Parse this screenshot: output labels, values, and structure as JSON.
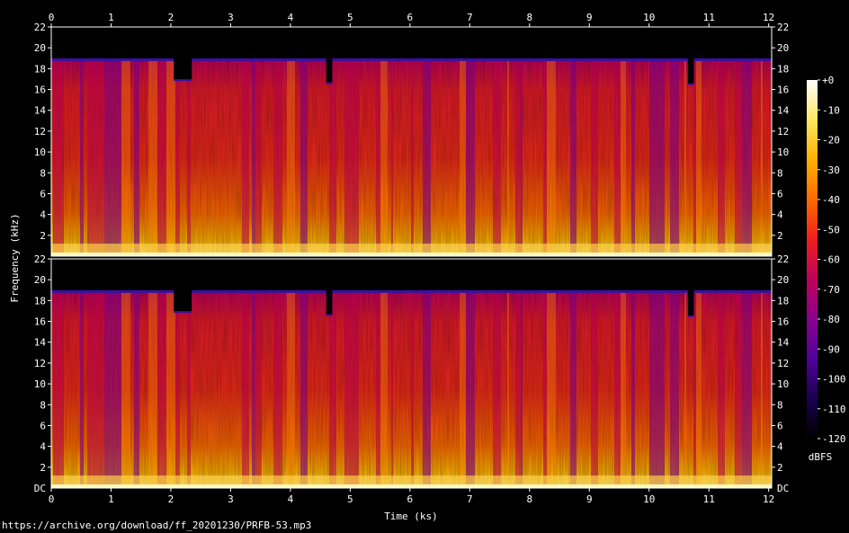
{
  "chart_data": {
    "type": "heatmap",
    "source_url": "https://archive.org/download/ff_20201230/PRFB-53.mp3",
    "xlabel": "Time (ks)",
    "ylabel": "Frequency (kHz)",
    "xlim": [
      0,
      12.05
    ],
    "x_ticks": [
      "0",
      "1",
      "2",
      "3",
      "4",
      "5",
      "6",
      "7",
      "8",
      "9",
      "10",
      "11",
      "12"
    ],
    "channels": [
      {
        "ylim": [
          0,
          22
        ],
        "y_ticks": [
          "22",
          "20",
          "18",
          "16",
          "14",
          "12",
          "10",
          "8",
          "6",
          "4",
          "2"
        ],
        "bottom_label": ""
      },
      {
        "ylim": [
          0,
          22
        ],
        "y_ticks": [
          "22",
          "20",
          "18",
          "16",
          "14",
          "12",
          "10",
          "8",
          "6",
          "4",
          "2"
        ],
        "bottom_label": "DC"
      }
    ],
    "colorbar": {
      "label": "dBFS",
      "range": [
        -120,
        0
      ],
      "ticks": [
        "+0",
        "-10",
        "-20",
        "-30",
        "-40",
        "-50",
        "-60",
        "-70",
        "-80",
        "-90",
        "-100",
        "-110",
        "-120"
      ],
      "stops": [
        "#000000",
        "#1a0050",
        "#50009a",
        "#8a0090",
        "#c0005a",
        "#ee1e1e",
        "#ff6a00",
        "#ffb000",
        "#ffe860",
        "#ffffff"
      ]
    },
    "bandwidth_cutoff_khz": 18.9,
    "segments": [
      {
        "start": 2.05,
        "end": 2.35,
        "cutoff_khz": 16.9
      },
      {
        "start": 4.6,
        "end": 4.7,
        "cutoff_khz": 16.6
      },
      {
        "start": 10.65,
        "end": 10.75,
        "cutoff_khz": 16.5
      }
    ]
  }
}
